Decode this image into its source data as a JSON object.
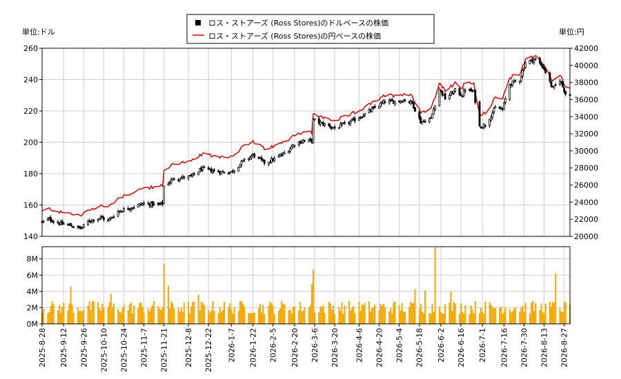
{
  "legend": {
    "dollar_label": "ロス・ストアーズ (Ross Stores)のドルベースの株価",
    "yen_label": "ロス・ストアーズ (Ross Stores)の円ベースの株価"
  },
  "axis_units": {
    "left": "単位:ドル",
    "right": "単位:円"
  },
  "colors": {
    "yen_line": "#e00000",
    "candle": "#000000",
    "volume_bar": "#f5a800",
    "grid": "#cccccc"
  },
  "chart_data": {
    "type": "candlestick+line+bar",
    "date_range": [
      "2025-08-28",
      "2026-08-31"
    ],
    "price_axis_left": {
      "min": 140,
      "max": 260,
      "ticks": [
        140,
        160,
        180,
        200,
        220,
        240,
        260
      ]
    },
    "price_axis_right": {
      "min": 20000,
      "max": 42000,
      "ticks": [
        20000,
        22000,
        24000,
        26000,
        28000,
        30000,
        32000,
        34000,
        36000,
        38000,
        40000,
        42000
      ]
    },
    "volume_axis": {
      "min": 0,
      "max": 9500000,
      "ticks": [
        0,
        2000000,
        4000000,
        6000000,
        8000000
      ],
      "tick_labels": [
        "0M",
        "2M",
        "4M",
        "6M",
        "8M"
      ]
    },
    "x_ticks": [
      "2025-8-28",
      "2025-9-12",
      "2025-9-26",
      "2025-10-10",
      "2025-10-24",
      "2025-11-7",
      "2025-11-21",
      "2025-12-8",
      "2025-12-22",
      "2026-1-7",
      "2026-1-22",
      "2026-2-5",
      "2026-2-20",
      "2026-3-6",
      "2026-3-20",
      "2026-4-6",
      "2026-4-20",
      "2026-5-4",
      "2026-5-18",
      "2026-6-2",
      "2026-6-16",
      "2026-7-1",
      "2026-7-16",
      "2026-7-30",
      "2026-8-13",
      "2026-8-27"
    ],
    "price_anchors": [
      [
        "2025-08-28",
        149
      ],
      [
        "2025-09-02",
        151
      ],
      [
        "2025-09-10",
        148
      ],
      [
        "2025-09-17",
        147
      ],
      [
        "2025-09-24",
        145
      ],
      [
        "2025-09-30",
        150
      ],
      [
        "2025-10-08",
        152
      ],
      [
        "2025-10-13",
        150
      ],
      [
        "2025-10-20",
        156
      ],
      [
        "2025-10-31",
        159
      ],
      [
        "2025-11-07",
        161
      ],
      [
        "2025-11-17",
        160
      ],
      [
        "2025-11-20",
        161
      ],
      [
        "2025-11-21",
        172
      ],
      [
        "2025-11-28",
        177
      ],
      [
        "2025-12-10",
        178
      ],
      [
        "2025-12-17",
        183
      ],
      [
        "2025-12-31",
        181
      ],
      [
        "2026-01-07",
        181
      ],
      [
        "2026-01-14",
        187
      ],
      [
        "2026-01-22",
        192
      ],
      [
        "2026-01-30",
        187
      ],
      [
        "2026-02-05",
        189
      ],
      [
        "2026-02-13",
        193
      ],
      [
        "2026-02-20",
        199
      ],
      [
        "2026-02-26",
        201
      ],
      [
        "2026-03-04",
        201
      ],
      [
        "2026-03-05",
        214
      ],
      [
        "2026-03-11",
        212
      ],
      [
        "2026-03-20",
        209
      ],
      [
        "2026-03-31",
        213
      ],
      [
        "2026-04-10",
        218
      ],
      [
        "2026-04-17",
        222
      ],
      [
        "2026-04-24",
        226
      ],
      [
        "2026-05-01",
        226
      ],
      [
        "2026-05-08",
        227
      ],
      [
        "2026-05-13",
        225
      ],
      [
        "2026-05-19",
        213
      ],
      [
        "2026-05-26",
        215
      ],
      [
        "2026-06-01",
        234
      ],
      [
        "2026-06-05",
        228
      ],
      [
        "2026-06-12",
        233
      ],
      [
        "2026-06-17",
        230
      ],
      [
        "2026-06-19",
        234
      ],
      [
        "2026-06-25",
        232
      ],
      [
        "2026-06-29",
        210
      ],
      [
        "2026-07-03",
        211
      ],
      [
        "2026-07-10",
        222
      ],
      [
        "2026-07-15",
        221
      ],
      [
        "2026-07-20",
        237
      ],
      [
        "2026-07-27",
        240
      ],
      [
        "2026-07-31",
        251
      ],
      [
        "2026-08-07",
        253
      ],
      [
        "2026-08-13",
        247
      ],
      [
        "2026-08-19",
        234
      ],
      [
        "2026-08-24",
        240
      ],
      [
        "2026-08-28",
        231
      ],
      [
        "2026-08-31",
        230
      ]
    ],
    "yen_per_dollar_anchors": [
      [
        "2025-08-28",
        148.5
      ],
      [
        "2025-10-01",
        149.0
      ],
      [
        "2025-11-21",
        156.5
      ],
      [
        "2026-01-15",
        158.0
      ],
      [
        "2026-03-01",
        156.0
      ],
      [
        "2026-05-01",
        158.0
      ],
      [
        "2026-07-01",
        159.5
      ],
      [
        "2026-08-31",
        159.0
      ]
    ],
    "volume_baseline": 2200000,
    "volume_spikes": [
      [
        "2025-09-17",
        4600000
      ],
      [
        "2025-10-15",
        3700000
      ],
      [
        "2025-11-21",
        7400000
      ],
      [
        "2025-11-22",
        6200000
      ],
      [
        "2025-11-24",
        4700000
      ],
      [
        "2025-12-15",
        3600000
      ],
      [
        "2026-03-04",
        4900000
      ],
      [
        "2026-03-05",
        6700000
      ],
      [
        "2026-05-15",
        4300000
      ],
      [
        "2026-05-22",
        4100000
      ],
      [
        "2026-05-29",
        9400000
      ],
      [
        "2026-06-09",
        4000000
      ],
      [
        "2026-06-27",
        8600000
      ],
      [
        "2026-06-28",
        4000000
      ],
      [
        "2026-08-21",
        6200000
      ],
      [
        "2026-08-22",
        6100000
      ]
    ]
  }
}
